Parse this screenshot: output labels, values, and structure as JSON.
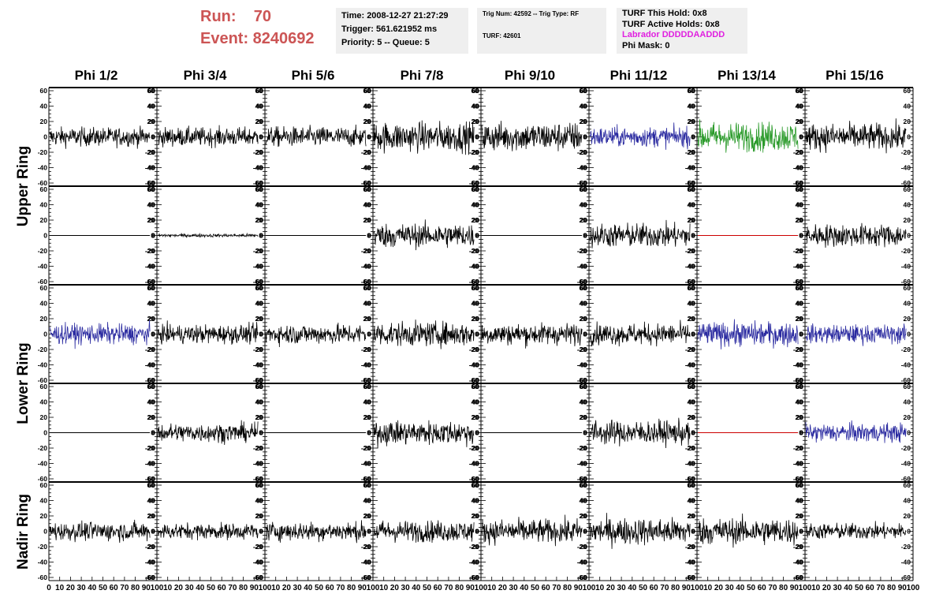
{
  "header": {
    "run_label": "Run:    70",
    "event_label": "Event: 8240692"
  },
  "info_time": {
    "time": "Time: 2008-12-27 21:27:29",
    "trigger": "Trigger: 561.621952 ms",
    "priority": "Priority: 5 -- Queue: 5"
  },
  "info_trig": {
    "trig": "Trig Num: 42592 -- Trig Type: RF",
    "turf": "TURF: 42601"
  },
  "info_turf": {
    "hold": "TURF This Hold: 0x8",
    "active": "TURF Active Holds: 0x8",
    "labrador": "Labrador DDDDDAADDD",
    "phimask": "Phi Mask: 0",
    "labrador_color": "#e020e0"
  },
  "phi_headers": [
    "Phi 1/2",
    "Phi 3/4",
    "Phi 5/6",
    "Phi 7/8",
    "Phi 9/10",
    "Phi 11/12",
    "Phi 13/14",
    "Phi 15/16"
  ],
  "ring_labels": [
    "Upper Ring",
    "Lower Ring",
    "Nadir Ring"
  ],
  "chart_data": {
    "type": "line",
    "layout": "grid of 5 rows x 8 columns of waveform panels",
    "xlim": [
      0,
      100
    ],
    "ylim": [
      -60,
      60
    ],
    "y_ticks": [
      "-60",
      "-40",
      "-20",
      "0",
      "20",
      "40",
      "60"
    ],
    "x_ticks": [
      "0",
      "10",
      "20",
      "30",
      "40",
      "50",
      "60",
      "70",
      "80",
      "90",
      "100"
    ],
    "colors": {
      "black": "#000000",
      "blue": "#2a2aa0",
      "green": "#2a9a2a",
      "red": "#cc0000"
    },
    "rows": [
      {
        "ring": "Upper Ring",
        "panels": [
          {
            "color": "black",
            "amplitude": 14,
            "kind": "noise"
          },
          {
            "color": "black",
            "amplitude": 14,
            "kind": "noise"
          },
          {
            "color": "black",
            "amplitude": 15,
            "kind": "noise"
          },
          {
            "color": "black",
            "amplitude": 22,
            "kind": "noise"
          },
          {
            "color": "black",
            "amplitude": 22,
            "kind": "noise"
          },
          {
            "color": "blue",
            "amplitude": 15,
            "kind": "noise"
          },
          {
            "color": "green",
            "amplitude": 22,
            "kind": "noise"
          },
          {
            "color": "black",
            "amplitude": 20,
            "kind": "noise"
          }
        ]
      },
      {
        "ring": "Upper Ring",
        "panels": [
          {
            "color": "black",
            "amplitude": 0,
            "kind": "flat"
          },
          {
            "color": "black",
            "amplitude": 2.5,
            "kind": "noise"
          },
          {
            "color": "black",
            "amplitude": 0,
            "kind": "flat"
          },
          {
            "color": "black",
            "amplitude": 18,
            "kind": "noise"
          },
          {
            "color": "black",
            "amplitude": 0,
            "kind": "flat"
          },
          {
            "color": "black",
            "amplitude": 18,
            "kind": "noise"
          },
          {
            "color": "red",
            "amplitude": 0,
            "kind": "flat"
          },
          {
            "color": "black",
            "amplitude": 17,
            "kind": "noise"
          }
        ]
      },
      {
        "ring": "Lower Ring",
        "panels": [
          {
            "color": "blue",
            "amplitude": 15,
            "kind": "noise"
          },
          {
            "color": "black",
            "amplitude": 14,
            "kind": "noise"
          },
          {
            "color": "black",
            "amplitude": 15,
            "kind": "noise"
          },
          {
            "color": "black",
            "amplitude": 18,
            "kind": "noise"
          },
          {
            "color": "black",
            "amplitude": 16,
            "kind": "noise"
          },
          {
            "color": "black",
            "amplitude": 16,
            "kind": "noise"
          },
          {
            "color": "blue",
            "amplitude": 18,
            "kind": "noise"
          },
          {
            "color": "blue",
            "amplitude": 14,
            "kind": "noise"
          }
        ]
      },
      {
        "ring": "Lower Ring",
        "panels": [
          {
            "color": "black",
            "amplitude": 0,
            "kind": "flat"
          },
          {
            "color": "black",
            "amplitude": 14,
            "kind": "noise"
          },
          {
            "color": "black",
            "amplitude": 0,
            "kind": "flat"
          },
          {
            "color": "black",
            "amplitude": 18,
            "kind": "noise"
          },
          {
            "color": "black",
            "amplitude": 0,
            "kind": "flat"
          },
          {
            "color": "black",
            "amplitude": 18,
            "kind": "noise"
          },
          {
            "color": "red",
            "amplitude": 0,
            "kind": "flat"
          },
          {
            "color": "blue",
            "amplitude": 14,
            "kind": "noise"
          }
        ]
      },
      {
        "ring": "Nadir Ring",
        "panels": [
          {
            "color": "black",
            "amplitude": 14,
            "kind": "noise"
          },
          {
            "color": "black",
            "amplitude": 12,
            "kind": "noise"
          },
          {
            "color": "black",
            "amplitude": 14,
            "kind": "noise"
          },
          {
            "color": "black",
            "amplitude": 16,
            "kind": "noise"
          },
          {
            "color": "black",
            "amplitude": 18,
            "kind": "noise"
          },
          {
            "color": "black",
            "amplitude": 20,
            "kind": "noise"
          },
          {
            "color": "black",
            "amplitude": 20,
            "kind": "noise"
          },
          {
            "color": "black",
            "amplitude": 12,
            "kind": "noise"
          }
        ]
      }
    ]
  }
}
